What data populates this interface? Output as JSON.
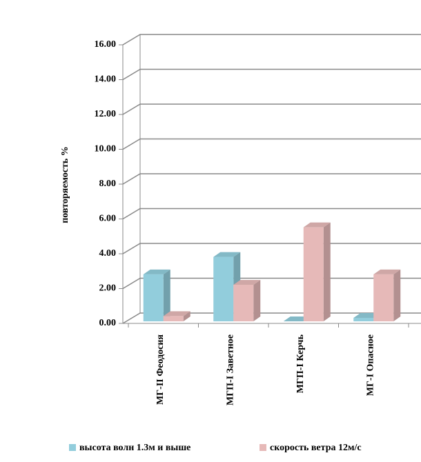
{
  "chart_data": {
    "type": "bar3d",
    "ylabel": "повторяемость %",
    "categories": [
      "МГ-II Феодосия",
      "МГП-I Заветное",
      "МГП-I Керчь",
      "МГ-I Опасное"
    ],
    "series": [
      {
        "name": "высота волн 1.3м и выше",
        "color": "#92cddc",
        "values": [
          2.7,
          3.7,
          0.0,
          0.2
        ]
      },
      {
        "name": "скорость ветра 12м/с",
        "color": "#e6b9b8",
        "values": [
          0.3,
          2.1,
          5.4,
          2.7
        ]
      }
    ],
    "ylim": [
      0,
      16
    ],
    "yticks": [
      {
        "value": 0,
        "label": "0.00"
      },
      {
        "value": 2,
        "label": "2.00"
      },
      {
        "value": 4,
        "label": "4.00"
      },
      {
        "value": 6,
        "label": "6.00"
      },
      {
        "value": 8,
        "label": "8.00"
      },
      {
        "value": 10,
        "label": "10.00"
      },
      {
        "value": 12,
        "label": "12.00"
      },
      {
        "value": 14,
        "label": "14.00"
      },
      {
        "value": 16,
        "label": "16.00"
      }
    ],
    "grid": true
  }
}
